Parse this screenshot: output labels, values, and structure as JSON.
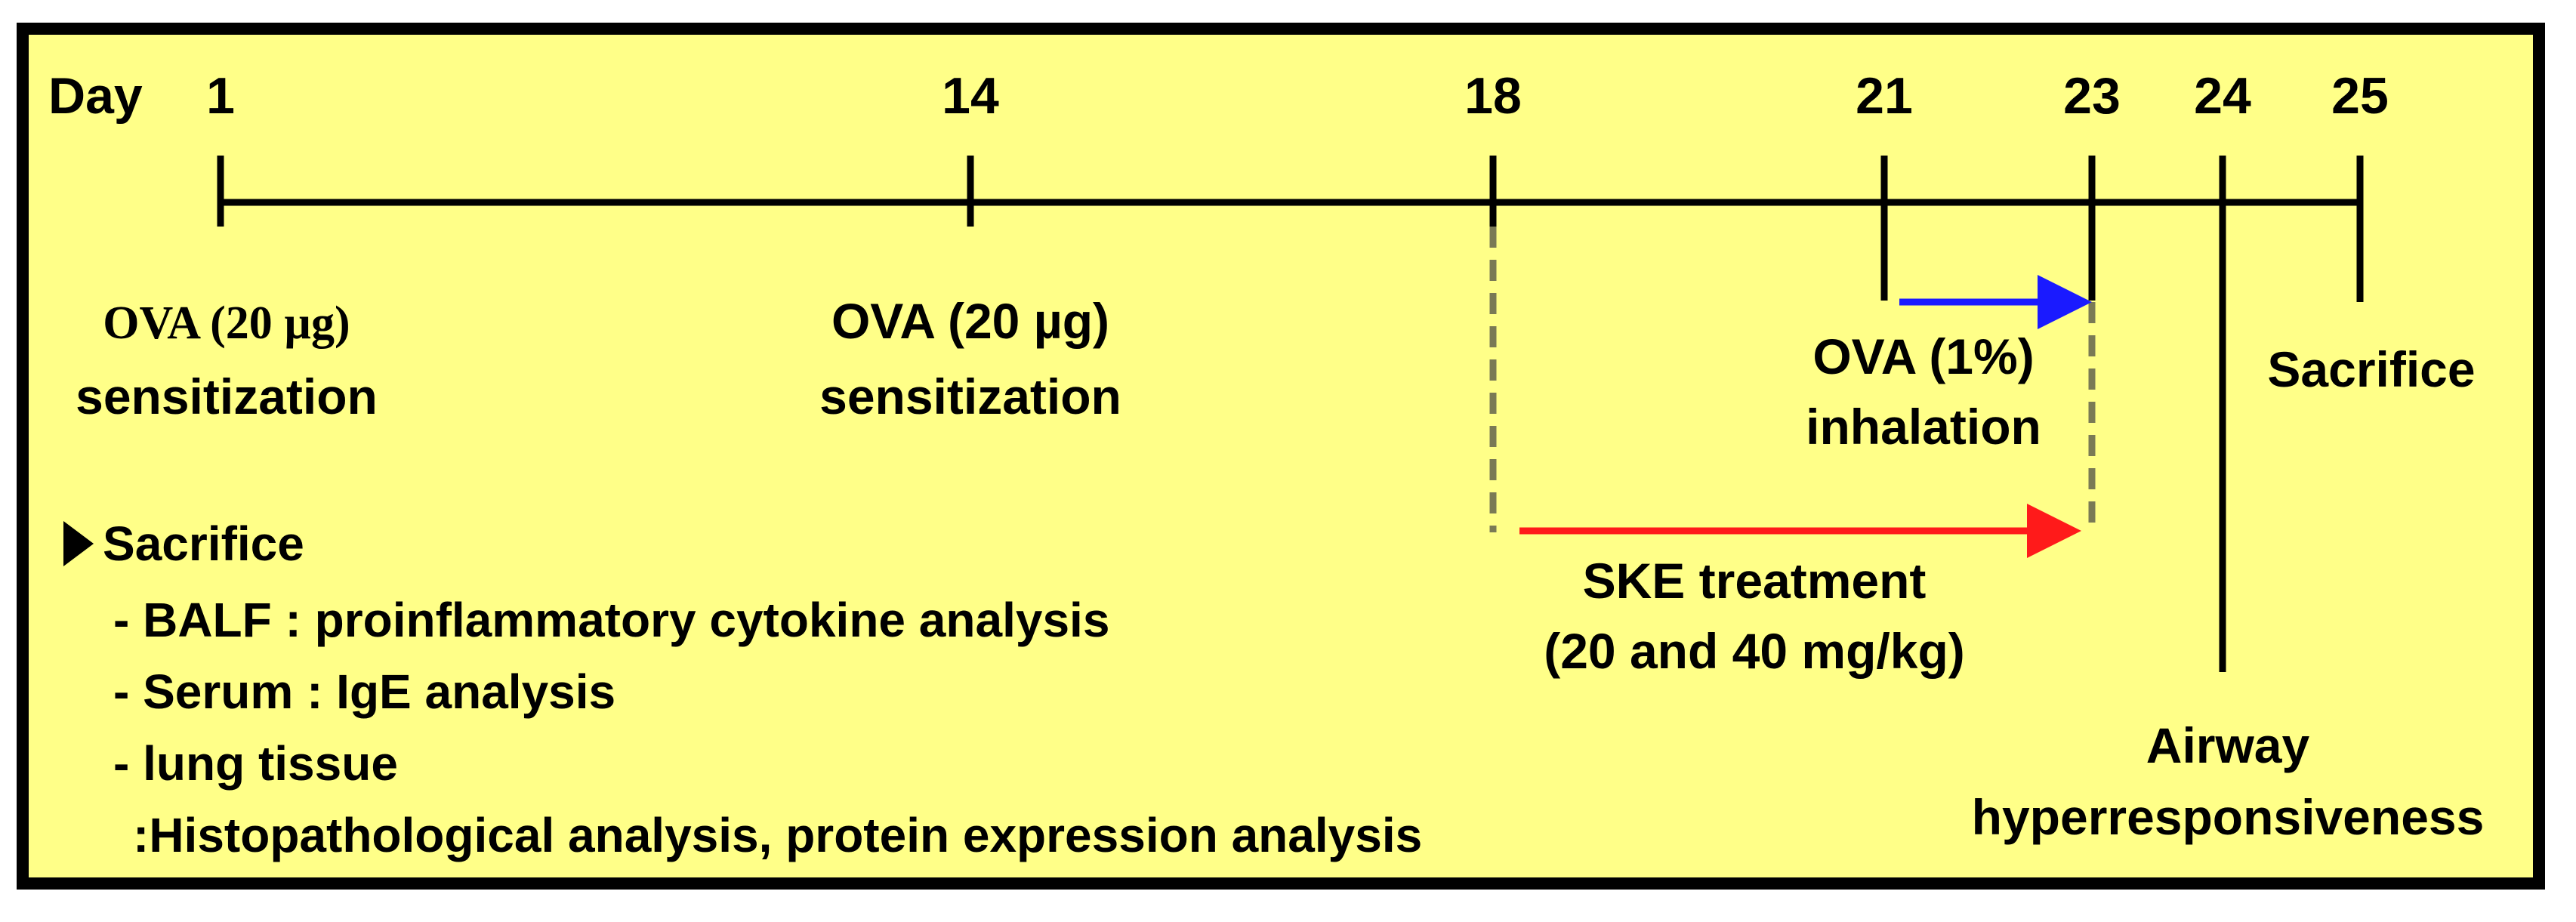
{
  "timeline": {
    "day_label": "Day",
    "ticks": [
      "1",
      "14",
      "18",
      "21",
      "23",
      "24",
      "25"
    ]
  },
  "events": {
    "sens1": {
      "line1": "OVA (20 µg)",
      "line2": "sensitization"
    },
    "sens2": {
      "line1": "OVA (20 µg)",
      "line2": "sensitization"
    },
    "inhalation": {
      "line1": "OVA (1%)",
      "line2": "inhalation"
    },
    "sacrifice": "Sacrifice",
    "treatment": {
      "line1": "SKE treatment",
      "line2": "(20 and 40 mg/kg)"
    },
    "ahr": {
      "line1": "Airway",
      "line2": "hyperresponsiveness"
    }
  },
  "notes": {
    "header": "Sacrifice",
    "items": [
      "- BALF : proinflammatory cytokine analysis",
      "- Serum : IgE analysis",
      "- lung tissue",
      ":Histopathological analysis, protein expression analysis"
    ]
  },
  "colors": {
    "background": "#ffff88",
    "inhalation_arrow": "#1a1aff",
    "treatment_arrow": "#ff1a1a",
    "dashed_guide": "#7a7a55"
  }
}
